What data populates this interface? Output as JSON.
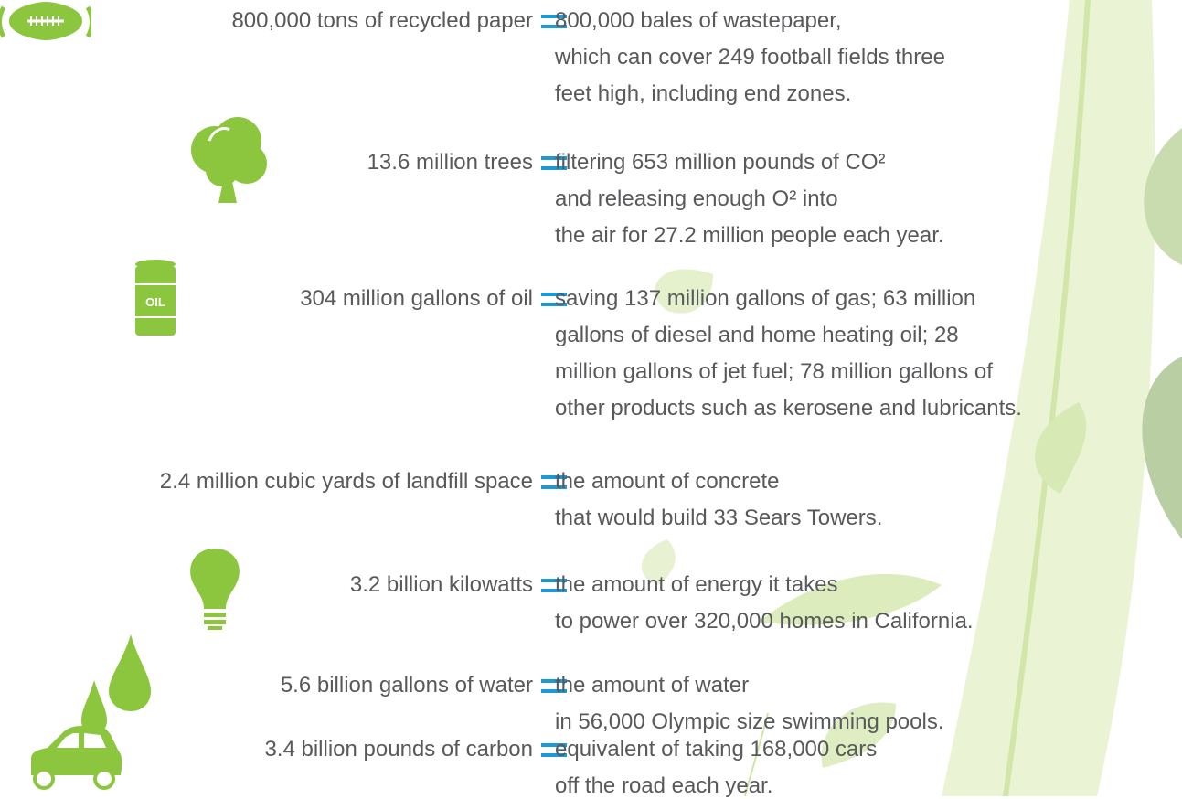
{
  "rows": [
    {
      "left": "800,000 tons of recycled paper",
      "right": [
        "800,000 bales of wastepaper,",
        "which can cover 249 football fields three",
        "feet high, including end zones."
      ]
    },
    {
      "left": "13.6 million trees",
      "right": [
        "filtering 653 million pounds of CO²",
        "and releasing enough O² into",
        "the air for 27.2 million people each year."
      ]
    },
    {
      "left": "304 million gallons of oil",
      "right": [
        "saving 137 million gallons of gas; 63 million",
        "gallons of diesel and home heating oil; 28",
        "million gallons of jet fuel; 78 million gallons of",
        "other products such as kerosene and lubricants."
      ]
    },
    {
      "left": "2.4 million cubic yards of landfill space",
      "right": [
        "the amount of concrete",
        "that would build 33 Sears Towers."
      ]
    },
    {
      "left": "3.2 billion kilowatts",
      "right": [
        "the amount of energy it takes",
        "to power over 320,000 homes in California."
      ]
    },
    {
      "left": "5.6 billion gallons of water",
      "right": [
        "the amount of water",
        "in 56,000 Olympic size swimming pools."
      ]
    },
    {
      "left": "3.4 billion pounds of carbon",
      "right": [
        "equivalent of taking 168,000 cars",
        "off the road each year."
      ]
    }
  ]
}
